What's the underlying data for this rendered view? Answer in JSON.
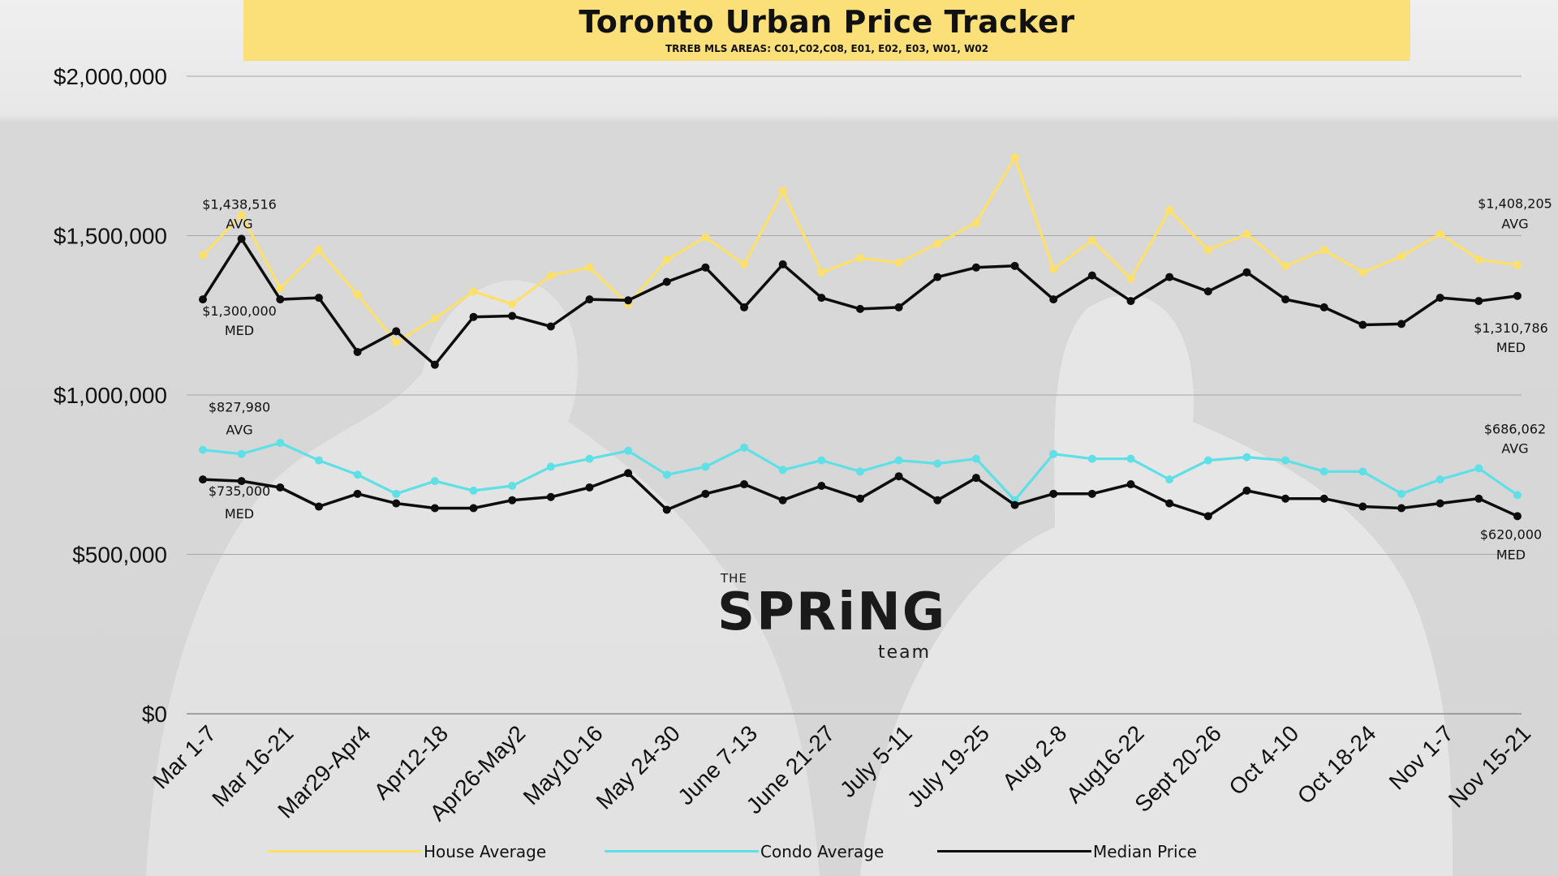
{
  "header": {
    "title": "Toronto Urban Price Tracker",
    "subtitle": "TRREB MLS AREAS: C01,C02,C08, E01, E02, E03, W01, W02"
  },
  "logo": {
    "the": "THE",
    "spring": "SPRiNG",
    "team": "team"
  },
  "colors": {
    "house": "#fde06a",
    "condo": "#5fe0e6",
    "median": "#0d0d0d",
    "banner": "#fbe07a",
    "grid": "#a6a6a6"
  },
  "legend": [
    {
      "label": "House Average",
      "color": "#fde06a"
    },
    {
      "label": "Condo Average",
      "color": "#5fe0e6"
    },
    {
      "label": "Median Price",
      "color": "#0d0d0d"
    }
  ],
  "chart_data": {
    "type": "line",
    "ylim": [
      0,
      2000000
    ],
    "y_ticks": [
      0,
      500000,
      1000000,
      1500000,
      2000000
    ],
    "y_tick_labels": [
      "$0",
      "$500,000",
      "$1,000,000",
      "$1,500,000",
      "$2,000,000"
    ],
    "x_tick_labels": [
      "Mar 1-7",
      "Mar 16-21",
      "Mar29-Apr4",
      "Apr12-18",
      "Apr26-May2",
      "May10-16",
      "May 24-30",
      "June 7-13",
      "June 21-27",
      "July 5-11",
      "July 19-25",
      "Aug 2-8",
      "Aug16-22",
      "Sept 20-26",
      "Oct 4-10",
      "Oct 18-24",
      "Nov 1-7",
      "Nov 15-21"
    ],
    "x_tick_positions": [
      0,
      2,
      4,
      6,
      8,
      10,
      12,
      14,
      16,
      18,
      20,
      22,
      24,
      26,
      28,
      30,
      32,
      34
    ],
    "grid": true,
    "legend_position": "bottom",
    "series": [
      {
        "name": "House Average",
        "key": "house",
        "values": [
          1438516,
          1565000,
          1335000,
          1455000,
          1315000,
          1165000,
          1240000,
          1325000,
          1285000,
          1375000,
          1400000,
          1285000,
          1425000,
          1495000,
          1410000,
          1640000,
          1385000,
          1430000,
          1415000,
          1475000,
          1540000,
          1745000,
          1395000,
          1485000,
          1365000,
          1580000,
          1455000,
          1505000,
          1405000,
          1455000,
          1385000,
          1435000,
          1505000,
          1425000,
          1408205
        ]
      },
      {
        "name": "Median Price",
        "key": "median",
        "values": [
          1300000,
          1490000,
          1300000,
          1305000,
          1135000,
          1200000,
          1095000,
          1245000,
          1248000,
          1215000,
          1300000,
          1297000,
          1355000,
          1400000,
          1275000,
          1410000,
          1305000,
          1270000,
          1275000,
          1370000,
          1400000,
          1405000,
          1300000,
          1375000,
          1295000,
          1370000,
          1325000,
          1385000,
          1300000,
          1275000,
          1220000,
          1223000,
          1305000,
          1295000,
          1310786
        ]
      },
      {
        "name": "Condo Average",
        "key": "condo",
        "values": [
          827980,
          815000,
          850000,
          795000,
          750000,
          690000,
          730000,
          700000,
          715000,
          775000,
          800000,
          825000,
          750000,
          775000,
          835000,
          765000,
          795000,
          760000,
          795000,
          785000,
          800000,
          670000,
          815000,
          800000,
          800000,
          735000,
          795000,
          805000,
          795000,
          760000,
          760000,
          690000,
          735000,
          770000,
          686062
        ]
      },
      {
        "name": "Median Price",
        "key": "median",
        "values": [
          735000,
          730000,
          710000,
          650000,
          690000,
          660000,
          645000,
          645000,
          670000,
          680000,
          710000,
          755000,
          640000,
          690000,
          720000,
          670000,
          715000,
          675000,
          745000,
          670000,
          740000,
          655000,
          690000,
          690000,
          720000,
          660000,
          620000,
          700000,
          675000,
          675000,
          650000,
          645000,
          660000,
          675000,
          620000
        ]
      }
    ],
    "annotations": [
      {
        "value": "$1,438,516",
        "tag": "AVG"
      },
      {
        "value": "$1,300,000",
        "tag": "MED"
      },
      {
        "value": "$827,980",
        "tag": "AVG"
      },
      {
        "value": "$735,000",
        "tag": "MED"
      },
      {
        "value": "$1,408,205",
        "tag": "AVG"
      },
      {
        "value": "$1,310,786",
        "tag": "MED"
      },
      {
        "value": "$686,062",
        "tag": "AVG"
      },
      {
        "value": "$620,000",
        "tag": "MED"
      }
    ]
  }
}
